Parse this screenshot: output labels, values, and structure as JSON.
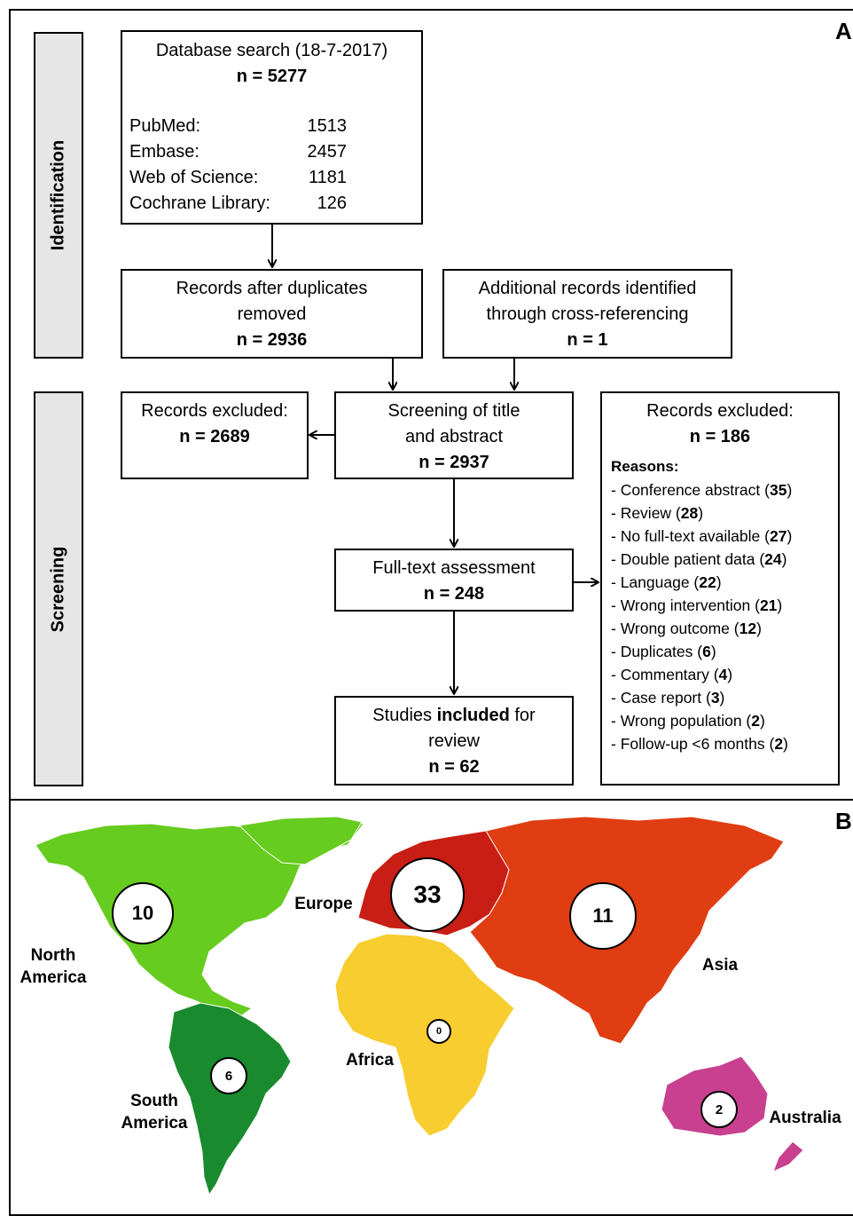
{
  "panels": {
    "a": "A",
    "b": "B"
  },
  "stages": {
    "identification": "Identification",
    "screening": "Screening"
  },
  "search": {
    "title": "Database search (18-7-2017)",
    "n": "n = 5277",
    "databases": [
      {
        "name": "PubMed:",
        "count": "1513"
      },
      {
        "name": "Embase:",
        "count": "2457"
      },
      {
        "name": "Web of Science:",
        "count": "1181"
      },
      {
        "name": "Cochrane Library:",
        "count": "126"
      }
    ]
  },
  "dedup": {
    "line1": "Records after duplicates",
    "line2": "removed",
    "n": "n = 2936"
  },
  "additional": {
    "line1": "Additional records identified",
    "line2": "through cross-referencing",
    "n": "n = 1"
  },
  "excluded_title": {
    "line1": "Records excluded:",
    "n": "n = 2689"
  },
  "screening": {
    "line1": "Screening of title",
    "line2": "and abstract",
    "n": "n = 2937"
  },
  "fulltext": {
    "line1": "Full-text assessment",
    "n": "n = 248"
  },
  "included": {
    "pre": "Studies ",
    "bold": "included",
    "post": " for",
    "line2": "review",
    "n": "n = 62"
  },
  "excluded_full": {
    "line1": "Records excluded:",
    "n": "n = 186",
    "reasons_header": "Reasons:",
    "reasons": [
      {
        "label": "- Conference abstract (",
        "count": "35",
        "close": ")"
      },
      {
        "label": "- Review (",
        "count": "28",
        "close": ")"
      },
      {
        "label": "- No full-text available (",
        "count": "27",
        "close": ")"
      },
      {
        "label": "- Double patient data (",
        "count": "24",
        "close": ")"
      },
      {
        "label": "- Language (",
        "count": "22",
        "close": ")"
      },
      {
        "label": "- Wrong intervention (",
        "count": "21",
        "close": ")"
      },
      {
        "label": "- Wrong outcome (",
        "count": "12",
        "close": ")"
      },
      {
        "label": "- Duplicates (",
        "count": "6",
        "close": ")"
      },
      {
        "label": "- Commentary (",
        "count": "4",
        "close": ")"
      },
      {
        "label": "- Case report (",
        "count": "3",
        "close": ")"
      },
      {
        "label": "- Wrong population (",
        "count": "2",
        "close": ")"
      },
      {
        "label": "- Follow-up <6 months (",
        "count": "2",
        "close": ")"
      }
    ]
  },
  "map": {
    "colors": {
      "north_america": "#66cc1f",
      "south_america": "#1a8a2e",
      "europe": "#c81e16",
      "asia": "#e03d12",
      "africa": "#f7cd2f",
      "australia": "#c8408f"
    },
    "regions": {
      "north_america": {
        "line1": "North",
        "line2": "America",
        "count": "10"
      },
      "south_america": {
        "line1": "South",
        "line2": "America",
        "count": "6"
      },
      "europe": {
        "label": "Europe",
        "count": "33"
      },
      "asia": {
        "label": "Asia",
        "count": "11"
      },
      "africa": {
        "label": "Africa",
        "count": "0"
      },
      "australia": {
        "label": "Australia",
        "count": "2"
      }
    }
  }
}
